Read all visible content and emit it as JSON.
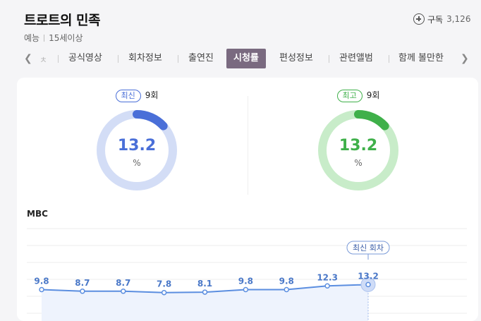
{
  "program": {
    "title": "트로트의 민족",
    "genre": "예능",
    "rating": "15세이상"
  },
  "subscribe": {
    "label": "구독",
    "count": "3,126"
  },
  "tabs": {
    "partial": "ㅊ",
    "items": [
      "공식영상",
      "회차정보",
      "출연진",
      "시청률",
      "편성정보",
      "관련앨범",
      "함께 볼만한"
    ],
    "active": "시청률"
  },
  "latest": {
    "badge": "최신",
    "episode": "9회",
    "value": "13.2",
    "unit": "%",
    "color": "#4a6fd8",
    "track": "#d3ddf6",
    "fill_fraction": 0.132
  },
  "highest": {
    "badge": "최고",
    "episode": "9회",
    "value": "13.2",
    "unit": "%",
    "color": "#3fb04a",
    "track": "#c8ecc9",
    "fill_fraction": 0.132
  },
  "chart_data": {
    "type": "line",
    "title": "MBC",
    "values": [
      9.8,
      8.7,
      8.7,
      7.8,
      8.1,
      9.8,
      9.8,
      12.3,
      13.2
    ],
    "labels": [
      "9.8",
      "8.7",
      "8.7",
      "7.8",
      "8.1",
      "9.8",
      "9.8",
      "12.3",
      "13.2"
    ],
    "highlight_index": 8,
    "highlight_label": "최신 회차",
    "grid": true,
    "line_color": "#5b8ee0"
  }
}
